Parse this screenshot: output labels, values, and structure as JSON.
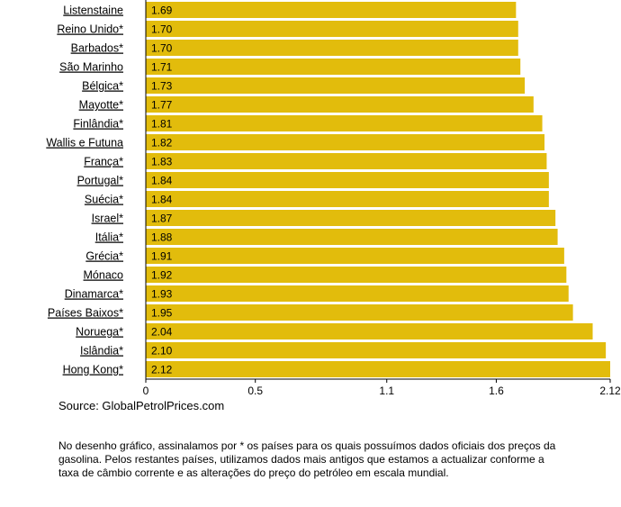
{
  "chart_data": {
    "type": "bar",
    "orientation": "horizontal",
    "categories": [
      "Listenstaine",
      "Reino Unido*",
      "Barbados*",
      "São Marinho",
      "Bélgica*",
      "Mayotte*",
      "Finlândia*",
      "Wallis e Futuna",
      "França*",
      "Portugal*",
      "Suécia*",
      "Israel*",
      "Itália*",
      "Grécia*",
      "Mónaco",
      "Dinamarca*",
      "Países Baixos*",
      "Noruega*",
      "Islândia*",
      "Hong Kong*"
    ],
    "values": [
      1.69,
      1.7,
      1.7,
      1.71,
      1.73,
      1.77,
      1.81,
      1.82,
      1.83,
      1.84,
      1.84,
      1.87,
      1.88,
      1.91,
      1.92,
      1.93,
      1.95,
      2.04,
      2.1,
      2.12
    ],
    "value_labels": [
      "1.69",
      "1.70",
      "1.70",
      "1.71",
      "1.73",
      "1.77",
      "1.81",
      "1.82",
      "1.83",
      "1.84",
      "1.84",
      "1.87",
      "1.88",
      "1.91",
      "1.92",
      "1.93",
      "1.95",
      "2.04",
      "2.10",
      "2.12"
    ],
    "xlim": [
      0,
      2.12
    ],
    "xticks": [
      0,
      0.5,
      1.1,
      1.6,
      2.12
    ],
    "xtick_labels": [
      "0",
      "0.5",
      "1.1",
      "1.6",
      "2.12"
    ],
    "bar_color": "#e2bc0c",
    "grid": false
  },
  "source": "Source: GlobalPetrolPrices.com",
  "note": "No desenho gráfico, assinalamos por * os países para os quais possuímos dados oficiais dos preços da gasolina. Pelos restantes países, utilizamos dados mais antigos que estamos a actualizar conforme a taxa de câmbio corrente e as alterações do preço do petróleo em escala mundial."
}
